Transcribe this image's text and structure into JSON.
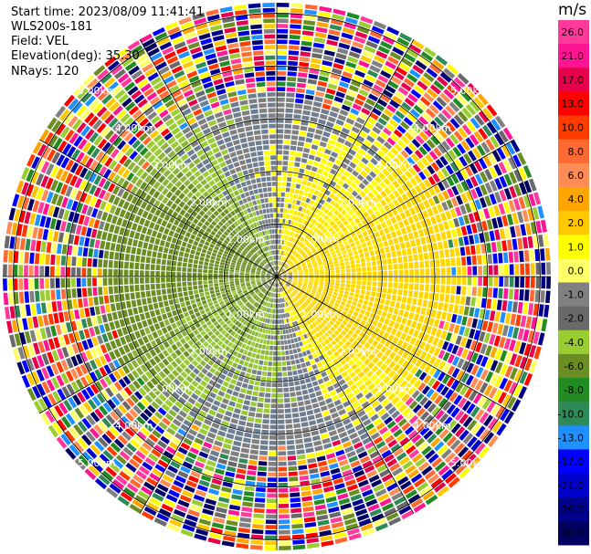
{
  "header": {
    "start_time": "Start time: 2023/08/09 11:41:41",
    "instrument": "WLS200s-181",
    "field": "Field: VEL",
    "elevation": "Elevation(deg): 35.30",
    "nrays": "NRays: 120"
  },
  "colorbar": {
    "unit": "m/s",
    "ticks": [
      "26.0",
      "21.0",
      "17.0",
      "13.0",
      "10.0",
      "8.0",
      "6.0",
      "4.0",
      "2.0",
      "1.0",
      "0.0",
      "-1.0",
      "-2.0",
      "-4.0",
      "-6.0",
      "-8.0",
      "-10.0",
      "-13.0",
      "-17.0",
      "-21.0",
      "-26.0",
      "-30.0"
    ],
    "colors": [
      "#ff3a9b",
      "#ff1493",
      "#e6004c",
      "#ff0000",
      "#ff3c00",
      "#ff6a33",
      "#ff8c55",
      "#ffa500",
      "#ffc800",
      "#ffff00",
      "#ffff66",
      "#808080",
      "#696969",
      "#9acd32",
      "#6b8e23",
      "#228b22",
      "#2e8b57",
      "#1e90ff",
      "#0000ff",
      "#0000cd",
      "#00008b",
      "#000060"
    ]
  },
  "range_rings": [
    "1.00km",
    "2.00km",
    "3.00km",
    "4.00km",
    "5.00km"
  ],
  "chart_data": {
    "type": "ppi",
    "field": "VEL",
    "unit": "m/s",
    "elevation_deg": 35.3,
    "n_rays": 120,
    "range_rings_km": [
      1,
      2,
      3,
      4,
      5
    ],
    "max_range_km": 5.2,
    "color_levels_ms": [
      -30,
      -26,
      -21,
      -17,
      -13,
      -10,
      -8,
      -6,
      -4,
      -2,
      -1,
      0,
      1,
      2,
      4,
      6,
      8,
      10,
      13,
      17,
      21,
      26
    ],
    "approx_pattern": "receding (yellow, +1 to +4 m/s) on east side, approaching (green, -1 to -4 m/s) on west side, near-zero (grey) band north-south, noisy multicolour beyond ~3.2 km"
  }
}
